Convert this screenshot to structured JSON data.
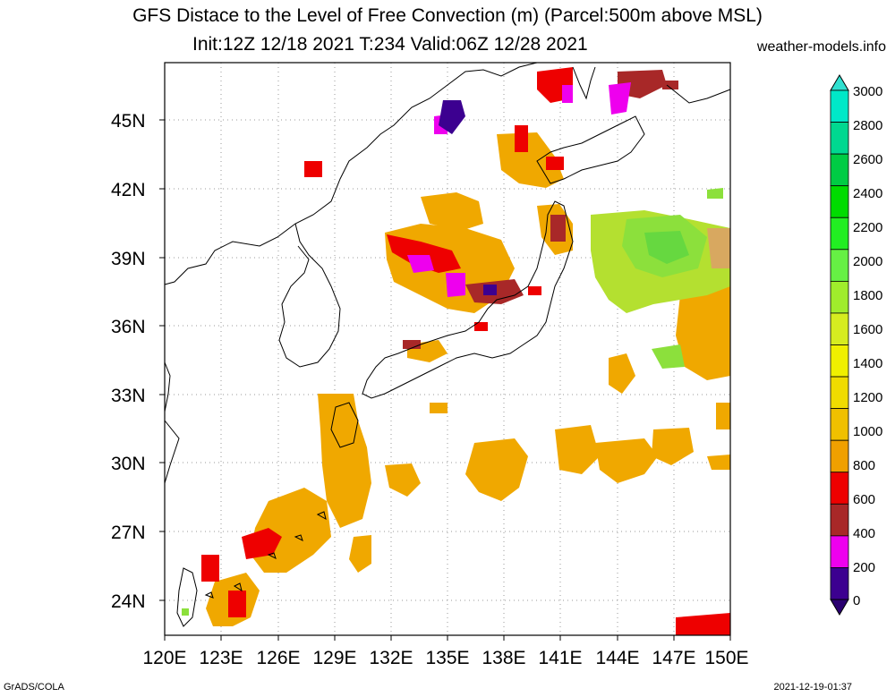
{
  "header": {
    "title": "GFS Distace to the Level of Free Convection (m) (Parcel:500m above MSL)",
    "subtitle": "Init:12Z 12/18 2021 T:234 Valid:06Z 12/28 2021",
    "site": "weather-models.info"
  },
  "map": {
    "lat_labels": [
      "45N",
      "42N",
      "39N",
      "36N",
      "33N",
      "30N",
      "27N",
      "24N"
    ],
    "lon_labels": [
      "120E",
      "123E",
      "126E",
      "129E",
      "132E",
      "135E",
      "138E",
      "141E",
      "144E",
      "147E",
      "150E"
    ],
    "extent": {
      "lon_min": 120,
      "lon_max": 150,
      "lat_min": 22.5,
      "lat_max": 47.5
    }
  },
  "colorbar": {
    "labels": [
      "3000",
      "2800",
      "2600",
      "2400",
      "2200",
      "2000",
      "1800",
      "1600",
      "1400",
      "1200",
      "1000",
      "800",
      "600",
      "400",
      "200",
      "0"
    ],
    "colors": [
      "#00e8c8",
      "#00d890",
      "#00cc44",
      "#00dc00",
      "#22ee22",
      "#66f044",
      "#a0ec2c",
      "#d6ec20",
      "#f0f000",
      "#f0dc00",
      "#f0c000",
      "#f0a000",
      "#ee0000",
      "#a82828",
      "#ee00ee",
      "#3c0090"
    ],
    "top_color": "#30e0d0",
    "bottom_color": "#2a0070"
  },
  "footer": {
    "left": "GrADS/COLA",
    "right": "2021-12-19-01:37"
  }
}
